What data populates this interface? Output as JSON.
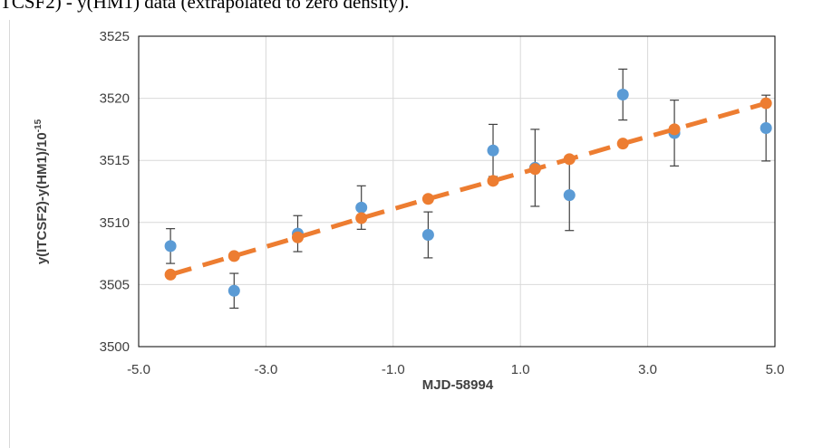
{
  "header_text": "TCSF2) - y(HM1) data (extrapolated to zero density).",
  "chart_data": {
    "type": "scatter",
    "xlabel": "MJD-58994",
    "ylabel": "y(ITCSF2)-y(HM1)/10",
    "ylabel_exponent": "-15",
    "x": [
      -4.5,
      -3.5,
      -2.5,
      -1.5,
      -0.45,
      0.57,
      1.23,
      1.77,
      2.61,
      3.42,
      4.86
    ],
    "series": [
      {
        "color": "#5b9bd5",
        "style": "markers",
        "values": [
          3508.1,
          3504.5,
          3509.1,
          3511.2,
          3509.0,
          3515.8,
          3514.4,
          3512.2,
          3520.3,
          3517.2,
          3517.6
        ],
        "errors": [
          1.4,
          1.4,
          1.45,
          1.75,
          1.85,
          2.1,
          3.1,
          2.85,
          2.05,
          2.65,
          2.65
        ],
        "error_color": "#404040"
      },
      {
        "color": "#ed7d31",
        "style": "dashed-line-markers",
        "values": [
          3505.8,
          3507.3,
          3508.8,
          3510.35,
          3511.9,
          3513.35,
          3514.3,
          3515.1,
          3516.35,
          3517.5,
          3519.6
        ]
      }
    ],
    "xlim": [
      -5,
      5
    ],
    "xticks": [
      {
        "value": -5,
        "label": "-5.0"
      },
      {
        "value": -3,
        "label": "-3.0"
      },
      {
        "value": -1,
        "label": "-1.0"
      },
      {
        "value": 1,
        "label": "1.0"
      },
      {
        "value": 3,
        "label": "3.0"
      },
      {
        "value": 5,
        "label": "5.0"
      }
    ],
    "ylim": [
      3500,
      3525
    ],
    "yticks": [
      3500,
      3505,
      3510,
      3515,
      3520,
      3525
    ],
    "grid": true
  }
}
